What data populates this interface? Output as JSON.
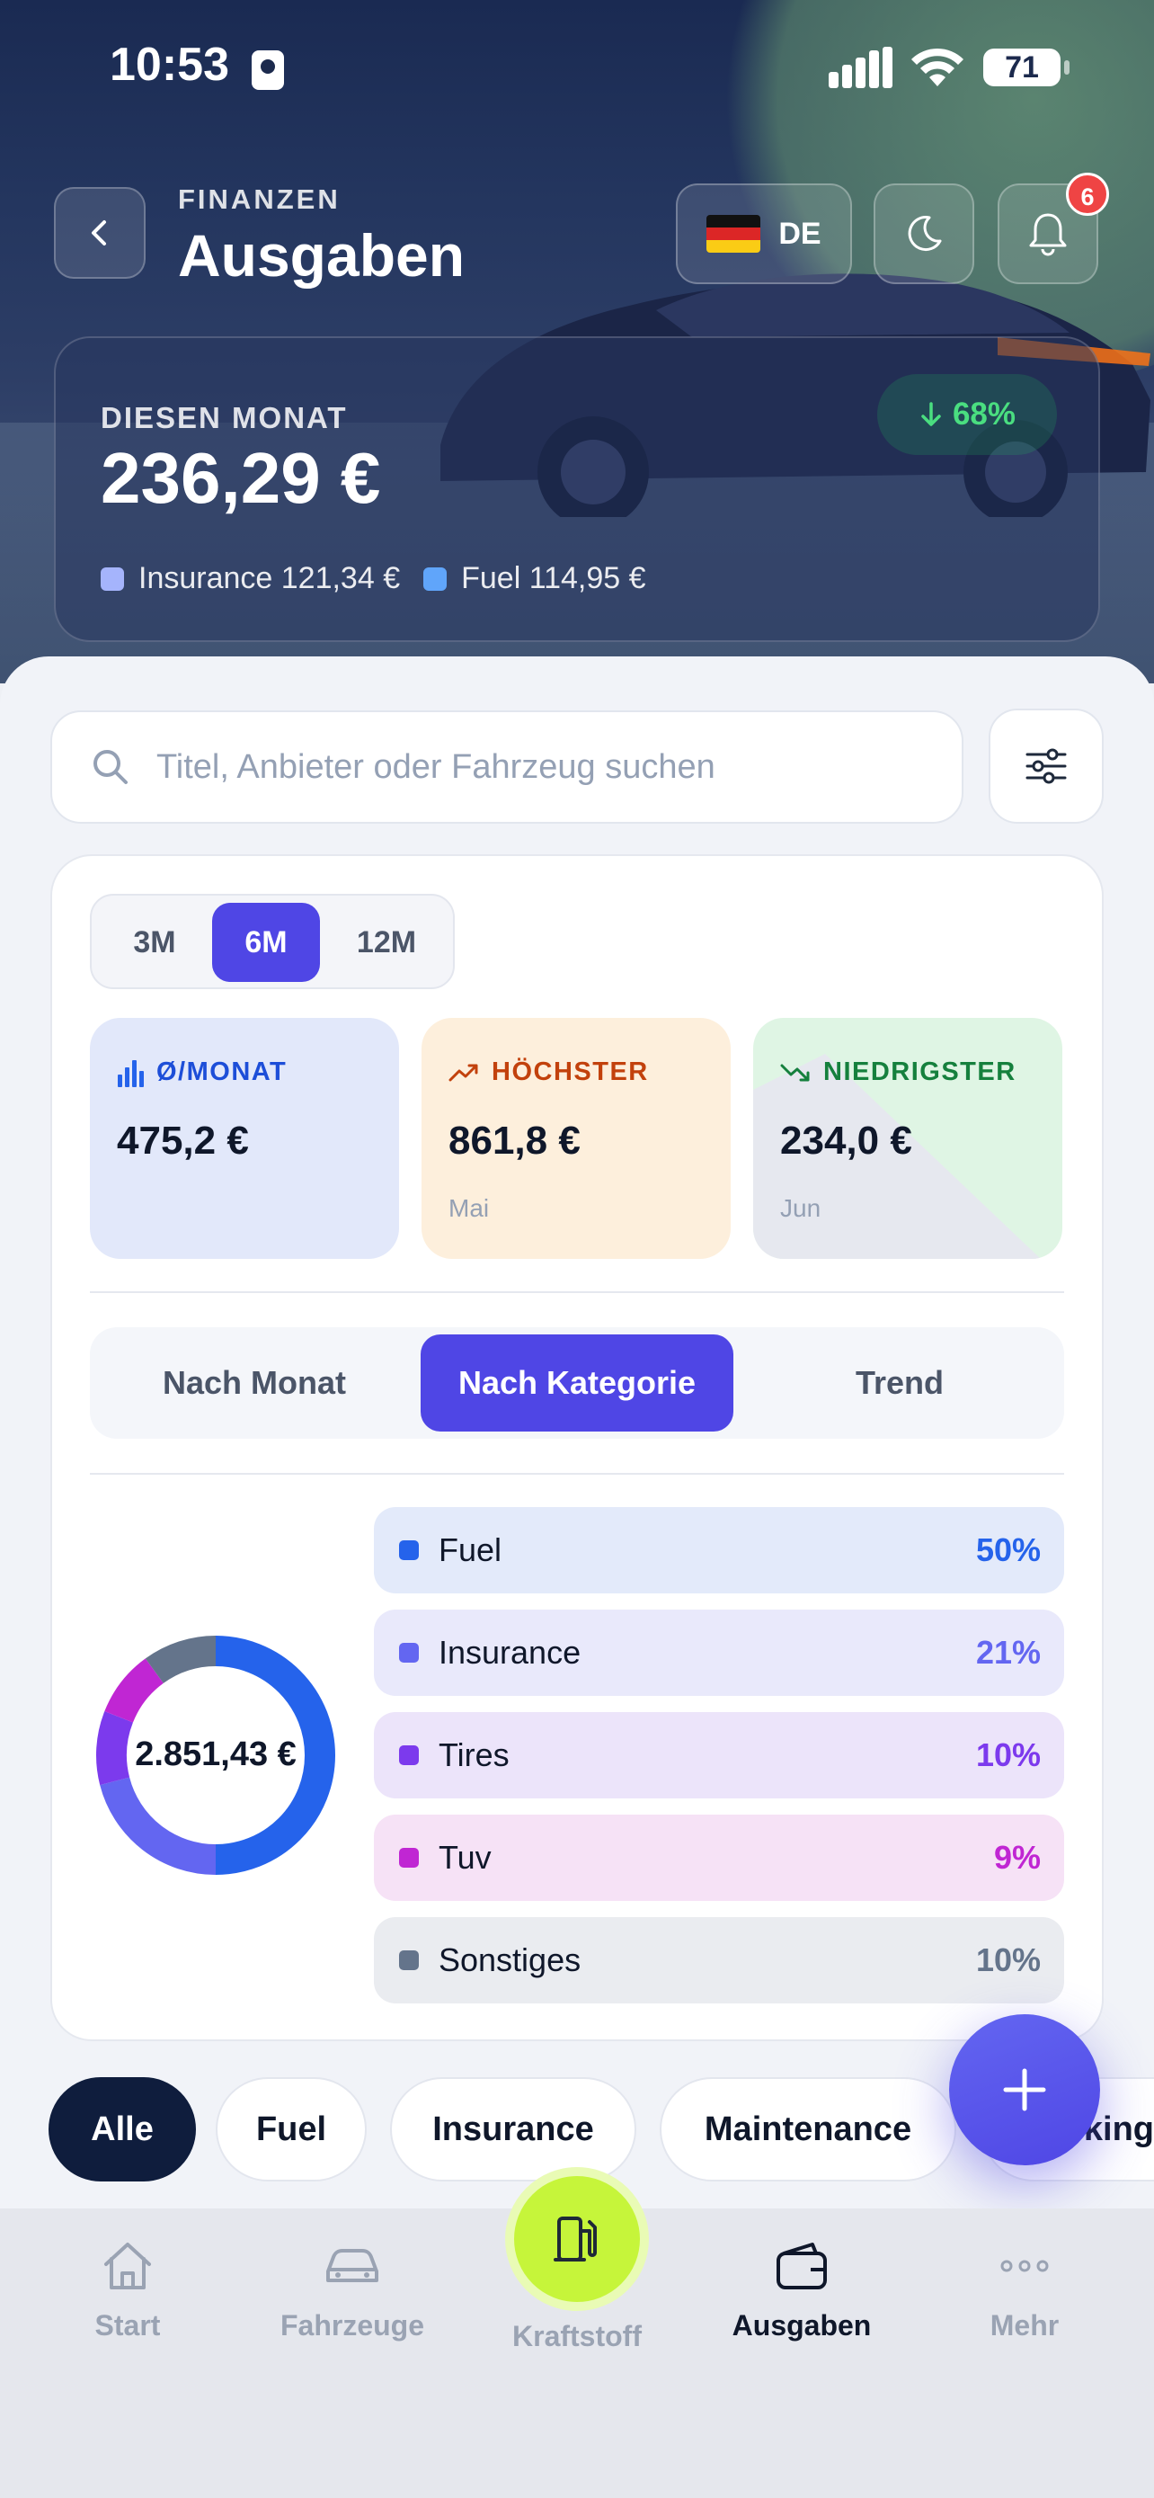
{
  "status": {
    "time": "10:53",
    "battery": "71"
  },
  "header": {
    "eyebrow": "FINANZEN",
    "title": "Ausgaben",
    "language": "DE",
    "notifications": "6"
  },
  "summary": {
    "label": "DIESEN MONAT",
    "value": "236,29 €",
    "trend": "68%",
    "legend": [
      {
        "label": "Insurance 121,34 €",
        "color": "#a5b4fc"
      },
      {
        "label": "Fuel 114,95 €",
        "color": "#60a5fa"
      }
    ]
  },
  "search": {
    "placeholder": "Titel, Anbieter oder Fahrzeug suchen"
  },
  "periods": {
    "options": [
      "3M",
      "6M",
      "12M"
    ],
    "selected": "6M"
  },
  "kpis": [
    {
      "label": "Ø/MONAT",
      "value": "475,2 €",
      "sub": "",
      "icon": "bar-chart-icon",
      "color": "#1d4ed8",
      "bg": "#e2e8fa"
    },
    {
      "label": "HÖCHSTER",
      "value": "861,8 €",
      "sub": "Mai",
      "icon": "trend-up-icon",
      "color": "#c2410c",
      "bg": "#fdefdc"
    },
    {
      "label": "NIEDRIGSTER",
      "value": "234,0 €",
      "sub": "Jun",
      "icon": "trend-down-icon",
      "color": "#15803d",
      "bg": "#dff5e4"
    }
  ],
  "views": {
    "options": [
      "Nach Monat",
      "Nach Kategorie",
      "Trend"
    ],
    "selected": "Nach Kategorie"
  },
  "breakdown": {
    "total": "2.851,43 €",
    "categories": [
      {
        "name": "Fuel",
        "pct": "50%",
        "value": 50,
        "color": "#2563eb",
        "bg": "#e3eafa"
      },
      {
        "name": "Insurance",
        "pct": "21%",
        "value": 21,
        "color": "#6366f1",
        "bg": "#e9e9fb"
      },
      {
        "name": "Tires",
        "pct": "10%",
        "value": 10,
        "color": "#7c3aed",
        "bg": "#ece4fa"
      },
      {
        "name": "Tuv",
        "pct": "9%",
        "value": 9,
        "color": "#c026d3",
        "bg": "#f6e2f6"
      },
      {
        "name": "Sonstiges",
        "pct": "10%",
        "value": 10,
        "color": "#64748b",
        "bg": "#eaecf0"
      }
    ]
  },
  "chips": [
    "Alle",
    "Fuel",
    "Insurance",
    "Maintenance",
    "Parking"
  ],
  "chips_visible_last": "king",
  "tabs": [
    {
      "label": "Start",
      "icon": "home-icon"
    },
    {
      "label": "Fahrzeuge",
      "icon": "car-icon"
    },
    {
      "label": "Kraftstoff",
      "icon": "fuel-pump-icon"
    },
    {
      "label": "Ausgaben",
      "icon": "wallet-icon"
    },
    {
      "label": "Mehr",
      "icon": "more-icon"
    }
  ],
  "colors": {
    "accent": "#4f46e5",
    "lime": "#c6f53a",
    "navy": "#0f1d3d"
  }
}
